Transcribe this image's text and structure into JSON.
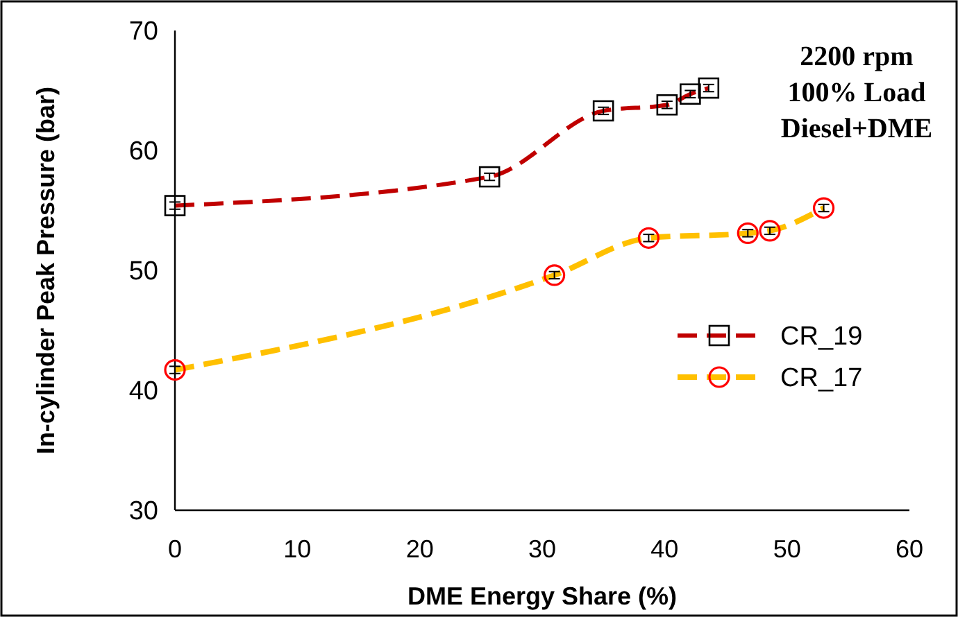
{
  "chart_data": {
    "type": "line",
    "xlabel": "DME Energy Share (%)",
    "ylabel": "In-cylinder Peak Pressure (bar)",
    "xlim": [
      0,
      60
    ],
    "xticks": [
      0,
      10,
      20,
      30,
      40,
      50,
      60
    ],
    "ylim": [
      30,
      70
    ],
    "yticks": [
      30,
      40,
      50,
      60,
      70
    ],
    "grid": false,
    "legend": "right",
    "line_style": "dashed",
    "annotations": [
      "2200 rpm",
      "100% Load",
      "Diesel+DME"
    ],
    "series": [
      {
        "name": "CR_19",
        "color": "#c00000",
        "marker": "square",
        "x": [
          0,
          25.7,
          35.0,
          40.2,
          42.1,
          43.6
        ],
        "values": [
          55.4,
          57.8,
          63.3,
          63.8,
          64.7,
          65.2
        ],
        "errors": [
          0.3,
          0.3,
          0.3,
          0.3,
          0.3,
          0.3
        ]
      },
      {
        "name": "CR_17",
        "color": "#ffc000",
        "marker": "circle",
        "x": [
          0,
          31.0,
          38.7,
          46.8,
          48.6,
          53.0
        ],
        "values": [
          41.7,
          49.6,
          52.7,
          53.1,
          53.3,
          55.2
        ],
        "errors": [
          0.3,
          0.3,
          0.3,
          0.3,
          0.3,
          0.3
        ]
      }
    ]
  }
}
